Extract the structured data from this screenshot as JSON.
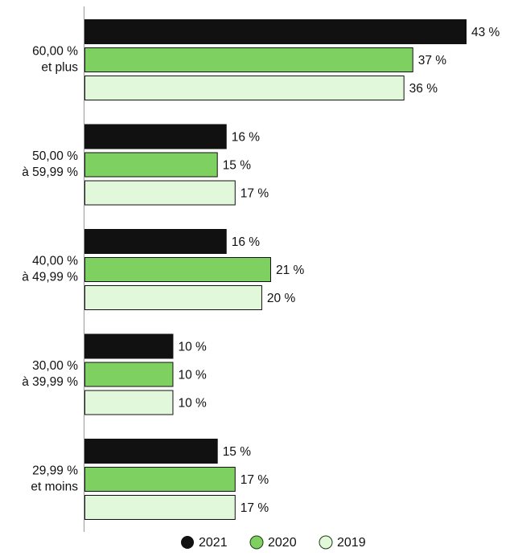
{
  "chart_data": {
    "type": "bar",
    "orientation": "horizontal",
    "categories": [
      [
        "60,00 %",
        "et plus"
      ],
      [
        "50,00 %",
        "à 59,99 %"
      ],
      [
        "40,00 %",
        "à 49,99 %"
      ],
      [
        "30,00 %",
        "à 39,99 %"
      ],
      [
        "29,99 %",
        "et moins"
      ]
    ],
    "series": [
      {
        "name": "2021",
        "color": "#111111",
        "values": [
          43,
          16,
          16,
          10,
          15
        ],
        "labels": [
          "43 %",
          "16 %",
          "16 %",
          "10 %",
          "15 %"
        ]
      },
      {
        "name": "2020",
        "color": "#7ed060",
        "values": [
          37,
          15,
          21,
          10,
          17
        ],
        "labels": [
          "37 %",
          "15 %",
          "21 %",
          "10 %",
          "17 %"
        ]
      },
      {
        "name": "2019",
        "color": "#e2f8da",
        "values": [
          36,
          17,
          20,
          10,
          17
        ],
        "labels": [
          "36 %",
          "17 %",
          "20 %",
          "10 %",
          "17 %"
        ]
      }
    ],
    "xlim": [
      0,
      43
    ],
    "grid": false,
    "legend": "bottom-center"
  }
}
